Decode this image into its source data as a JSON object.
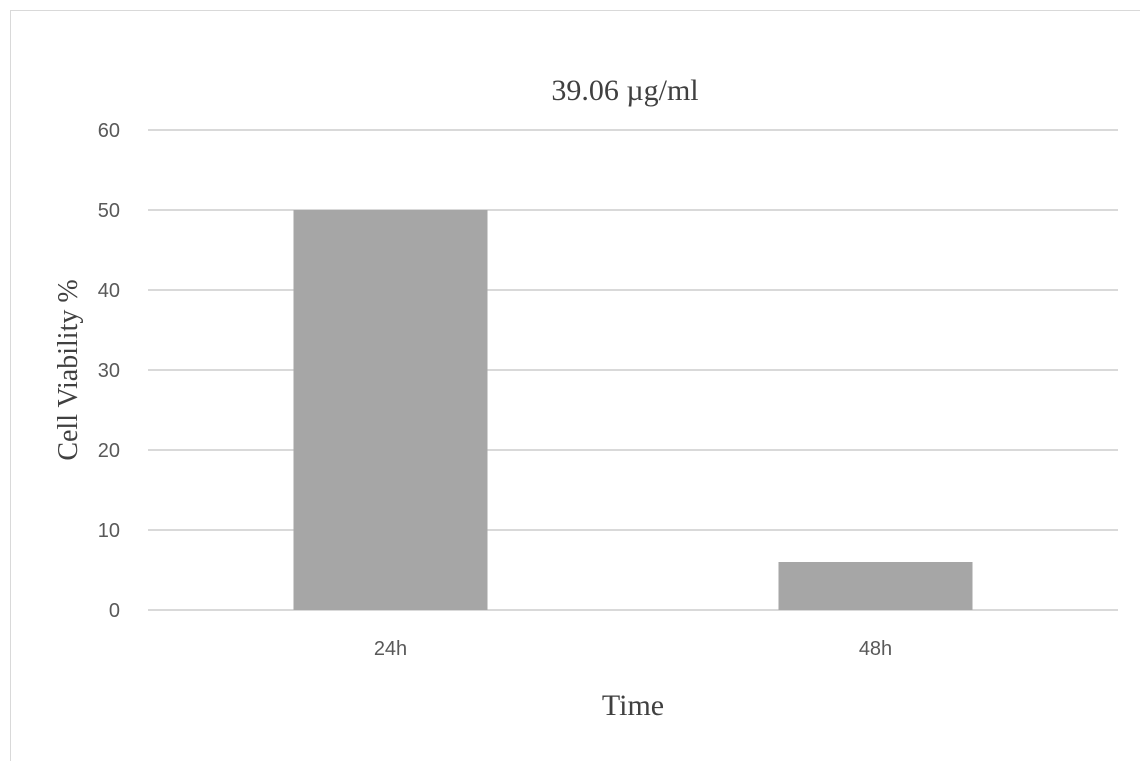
{
  "chart_data": {
    "type": "bar",
    "title": "39.06 µg/ml",
    "xlabel": "Time",
    "ylabel": "Cell Viability  %",
    "categories": [
      "24h",
      "48h"
    ],
    "values": [
      50,
      6
    ],
    "ylim": [
      0,
      60
    ],
    "yticks": [
      "0",
      "10",
      "20",
      "30",
      "40",
      "50",
      "60"
    ],
    "grid": true,
    "bar_color": "#a6a6a6",
    "grid_color": "#d9d9d9",
    "legend": "none"
  }
}
